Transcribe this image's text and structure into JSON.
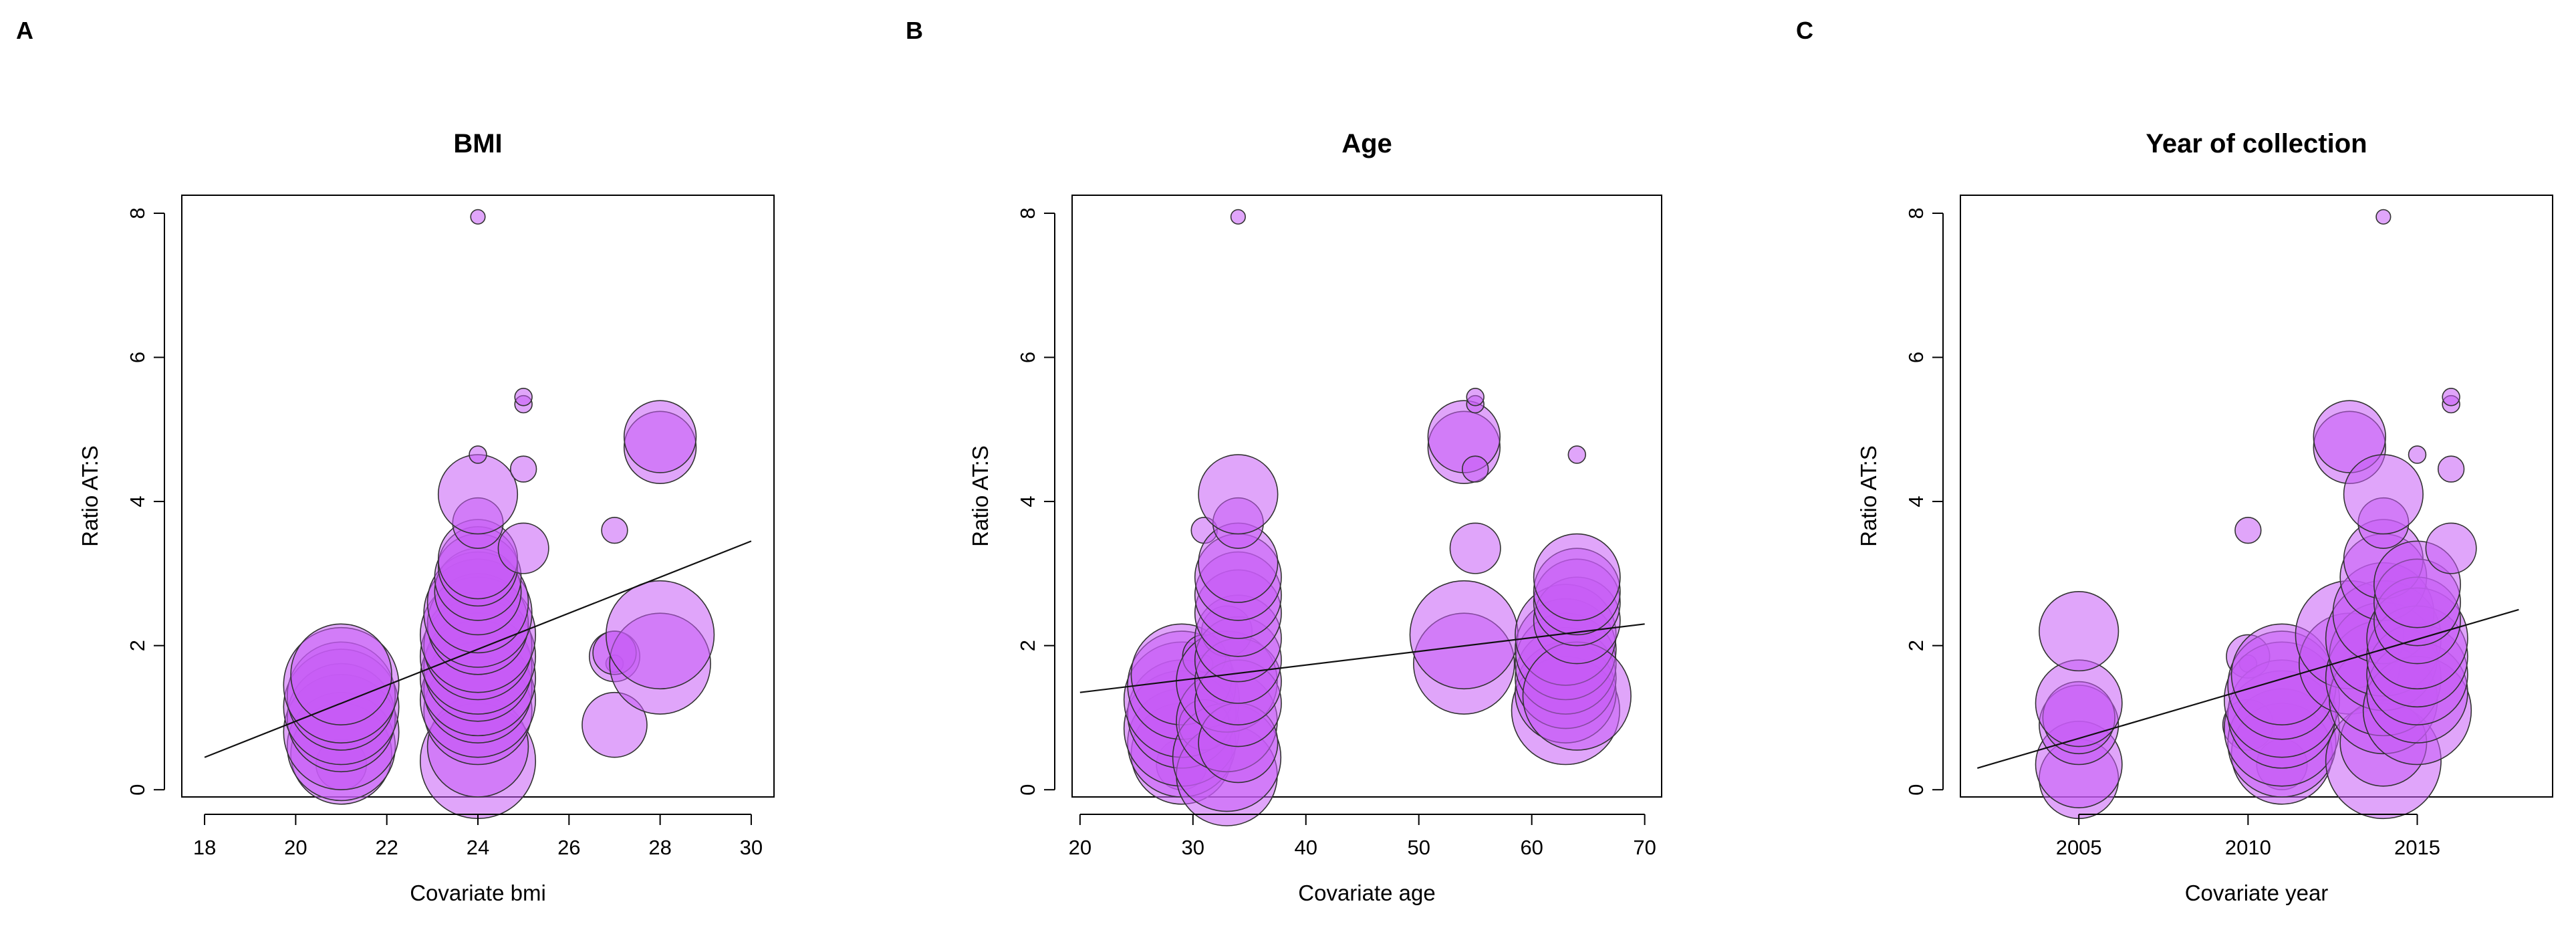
{
  "colors": {
    "bubble_fill": "#c65bf5",
    "bubble_stroke": "#333333",
    "line": "#111111"
  },
  "chart_data": [
    {
      "panel": "A",
      "type": "scatter",
      "title": "BMI",
      "xlabel": "Covariate bmi",
      "ylabel": "Ratio AT:S",
      "xlim": [
        17.5,
        30.5
      ],
      "ylim": [
        -0.1,
        8.25
      ],
      "xticks": [
        18,
        20,
        22,
        24,
        26,
        28,
        30
      ],
      "xtick_labels": [
        "18",
        "20",
        "22",
        "24",
        "26",
        "28",
        "30"
      ],
      "yticks": [
        0,
        2,
        4,
        6,
        8
      ],
      "ytick_labels": [
        "0",
        "2",
        "4",
        "6",
        "8"
      ],
      "regression": {
        "x": [
          18,
          30
        ],
        "y": [
          0.45,
          3.45
        ]
      },
      "points": [
        {
          "x": 21,
          "y": 0.35,
          "r": 0.35
        },
        {
          "x": 21,
          "y": 0.5,
          "r": 0.7
        },
        {
          "x": 21,
          "y": 0.6,
          "r": 0.75
        },
        {
          "x": 21,
          "y": 0.8,
          "r": 0.8
        },
        {
          "x": 21,
          "y": 1.0,
          "r": 0.75
        },
        {
          "x": 21,
          "y": 1.15,
          "r": 0.8
        },
        {
          "x": 21,
          "y": 1.3,
          "r": 0.75
        },
        {
          "x": 21,
          "y": 1.45,
          "r": 0.8
        },
        {
          "x": 21,
          "y": 1.6,
          "r": 0.7
        },
        {
          "x": 24,
          "y": 0.4,
          "r": 0.8
        },
        {
          "x": 24,
          "y": 0.6,
          "r": 0.7
        },
        {
          "x": 24,
          "y": 1.1,
          "r": 0.75
        },
        {
          "x": 24,
          "y": 1.25,
          "r": 0.8
        },
        {
          "x": 24,
          "y": 1.4,
          "r": 0.75
        },
        {
          "x": 24,
          "y": 1.55,
          "r": 0.8
        },
        {
          "x": 24,
          "y": 1.7,
          "r": 0.75
        },
        {
          "x": 24,
          "y": 1.85,
          "r": 0.8
        },
        {
          "x": 24,
          "y": 2.0,
          "r": 0.75
        },
        {
          "x": 24,
          "y": 2.15,
          "r": 0.8
        },
        {
          "x": 24,
          "y": 2.3,
          "r": 0.7
        },
        {
          "x": 24,
          "y": 2.45,
          "r": 0.75
        },
        {
          "x": 24,
          "y": 2.6,
          "r": 0.7
        },
        {
          "x": 24,
          "y": 2.75,
          "r": 0.6
        },
        {
          "x": 24,
          "y": 2.95,
          "r": 0.6
        },
        {
          "x": 24,
          "y": 3.1,
          "r": 0.55
        },
        {
          "x": 24,
          "y": 3.2,
          "r": 0.55
        },
        {
          "x": 24,
          "y": 3.7,
          "r": 0.35
        },
        {
          "x": 24,
          "y": 4.1,
          "r": 0.55
        },
        {
          "x": 24,
          "y": 4.65,
          "r": 0.12
        },
        {
          "x": 24,
          "y": 7.95,
          "r": 0.1
        },
        {
          "x": 25,
          "y": 3.35,
          "r": 0.35
        },
        {
          "x": 25,
          "y": 4.45,
          "r": 0.18
        },
        {
          "x": 25,
          "y": 5.35,
          "r": 0.12
        },
        {
          "x": 25,
          "y": 5.45,
          "r": 0.12
        },
        {
          "x": 27,
          "y": 0.9,
          "r": 0.45
        },
        {
          "x": 27,
          "y": 1.75,
          "r": 0.12
        },
        {
          "x": 27,
          "y": 1.85,
          "r": 0.35
        },
        {
          "x": 27,
          "y": 1.9,
          "r": 0.3
        },
        {
          "x": 27,
          "y": 3.6,
          "r": 0.18
        },
        {
          "x": 28,
          "y": 1.75,
          "r": 0.7
        },
        {
          "x": 28,
          "y": 2.15,
          "r": 0.75
        },
        {
          "x": 28,
          "y": 4.75,
          "r": 0.5
        },
        {
          "x": 28,
          "y": 4.9,
          "r": 0.5
        }
      ]
    },
    {
      "panel": "B",
      "type": "scatter",
      "title": "Age",
      "xlabel": "Covariate age",
      "ylabel": "Ratio AT:S",
      "xlim": [
        19.3,
        71.5
      ],
      "ylim": [
        -0.1,
        8.25
      ],
      "xticks": [
        20,
        30,
        40,
        50,
        60,
        70
      ],
      "xtick_labels": [
        "20",
        "30",
        "40",
        "50",
        "60",
        "70"
      ],
      "yticks": [
        0,
        2,
        4,
        6,
        8
      ],
      "ytick_labels": [
        "0",
        "2",
        "4",
        "6",
        "8"
      ],
      "regression": {
        "x": [
          20,
          70
        ],
        "y": [
          1.35,
          2.3
        ]
      },
      "points": [
        {
          "x": 29,
          "y": 0.35,
          "r": 0.35
        },
        {
          "x": 29,
          "y": 0.5,
          "r": 0.7
        },
        {
          "x": 29,
          "y": 0.65,
          "r": 0.75
        },
        {
          "x": 29,
          "y": 0.85,
          "r": 0.8
        },
        {
          "x": 29,
          "y": 1.05,
          "r": 0.75
        },
        {
          "x": 29,
          "y": 1.25,
          "r": 0.8
        },
        {
          "x": 29,
          "y": 1.45,
          "r": 0.75
        },
        {
          "x": 29,
          "y": 1.6,
          "r": 0.7
        },
        {
          "x": 31,
          "y": 0.9,
          "r": 0.35
        },
        {
          "x": 31,
          "y": 1.75,
          "r": 0.12
        },
        {
          "x": 31,
          "y": 1.85,
          "r": 0.3
        },
        {
          "x": 31,
          "y": 3.6,
          "r": 0.18
        },
        {
          "x": 33,
          "y": 0.2,
          "r": 0.7
        },
        {
          "x": 33,
          "y": 0.45,
          "r": 0.75
        },
        {
          "x": 33,
          "y": 0.95,
          "r": 0.7
        },
        {
          "x": 33,
          "y": 1.5,
          "r": 0.7
        },
        {
          "x": 33,
          "y": 2.2,
          "r": 0.35
        },
        {
          "x": 34,
          "y": 0.65,
          "r": 0.55
        },
        {
          "x": 34,
          "y": 1.2,
          "r": 0.6
        },
        {
          "x": 34,
          "y": 1.5,
          "r": 0.6
        },
        {
          "x": 34,
          "y": 1.8,
          "r": 0.6
        },
        {
          "x": 34,
          "y": 2.1,
          "r": 0.6
        },
        {
          "x": 34,
          "y": 2.45,
          "r": 0.6
        },
        {
          "x": 34,
          "y": 2.7,
          "r": 0.6
        },
        {
          "x": 34,
          "y": 2.95,
          "r": 0.6
        },
        {
          "x": 34,
          "y": 3.15,
          "r": 0.55
        },
        {
          "x": 34,
          "y": 3.7,
          "r": 0.35
        },
        {
          "x": 34,
          "y": 4.1,
          "r": 0.55
        },
        {
          "x": 34,
          "y": 7.95,
          "r": 0.1
        },
        {
          "x": 54,
          "y": 1.75,
          "r": 0.7
        },
        {
          "x": 54,
          "y": 2.15,
          "r": 0.75
        },
        {
          "x": 54,
          "y": 4.75,
          "r": 0.5
        },
        {
          "x": 54,
          "y": 4.9,
          "r": 0.5
        },
        {
          "x": 55,
          "y": 3.35,
          "r": 0.35
        },
        {
          "x": 55,
          "y": 4.45,
          "r": 0.18
        },
        {
          "x": 55,
          "y": 5.35,
          "r": 0.12
        },
        {
          "x": 55,
          "y": 5.45,
          "r": 0.12
        },
        {
          "x": 63,
          "y": 1.1,
          "r": 0.75
        },
        {
          "x": 63,
          "y": 1.35,
          "r": 0.7
        },
        {
          "x": 63,
          "y": 1.55,
          "r": 0.7
        },
        {
          "x": 63,
          "y": 1.75,
          "r": 0.7
        },
        {
          "x": 63,
          "y": 1.95,
          "r": 0.7
        },
        {
          "x": 63,
          "y": 2.15,
          "r": 0.7
        },
        {
          "x": 64,
          "y": 1.3,
          "r": 0.75
        },
        {
          "x": 64,
          "y": 2.35,
          "r": 0.6
        },
        {
          "x": 64,
          "y": 2.6,
          "r": 0.6
        },
        {
          "x": 64,
          "y": 2.75,
          "r": 0.6
        },
        {
          "x": 64,
          "y": 2.95,
          "r": 0.6
        },
        {
          "x": 64,
          "y": 4.65,
          "r": 0.12
        }
      ]
    },
    {
      "panel": "C",
      "type": "scatter",
      "title": "Year of collection",
      "xlabel": "Covariate year",
      "ylabel": "Ratio AT:S",
      "xlim": [
        2001.5,
        2019.0
      ],
      "ylim": [
        -0.1,
        8.25
      ],
      "xticks": [
        2005,
        2010,
        2015
      ],
      "xtick_labels": [
        "2005",
        "2010",
        "2015"
      ],
      "yticks": [
        0,
        2,
        4,
        6,
        8
      ],
      "ytick_labels": [
        "0",
        "2",
        "4",
        "6",
        "8"
      ],
      "regression": {
        "x": [
          2002,
          2018
        ],
        "y": [
          0.3,
          2.5
        ]
      },
      "points": [
        {
          "x": 2005,
          "y": 0.15,
          "r": 0.55
        },
        {
          "x": 2005,
          "y": 0.35,
          "r": 0.6
        },
        {
          "x": 2005,
          "y": 0.9,
          "r": 0.55
        },
        {
          "x": 2005,
          "y": 1.0,
          "r": 0.5
        },
        {
          "x": 2005,
          "y": 1.2,
          "r": 0.6
        },
        {
          "x": 2005,
          "y": 2.2,
          "r": 0.55
        },
        {
          "x": 2010,
          "y": 0.9,
          "r": 0.35
        },
        {
          "x": 2010,
          "y": 1.75,
          "r": 0.12
        },
        {
          "x": 2010,
          "y": 1.85,
          "r": 0.3
        },
        {
          "x": 2010,
          "y": 3.6,
          "r": 0.18
        },
        {
          "x": 2011,
          "y": 0.35,
          "r": 0.35
        },
        {
          "x": 2011,
          "y": 0.5,
          "r": 0.7
        },
        {
          "x": 2011,
          "y": 0.65,
          "r": 0.75
        },
        {
          "x": 2011,
          "y": 0.85,
          "r": 0.8
        },
        {
          "x": 2011,
          "y": 1.05,
          "r": 0.75
        },
        {
          "x": 2011,
          "y": 1.25,
          "r": 0.8
        },
        {
          "x": 2011,
          "y": 1.45,
          "r": 0.75
        },
        {
          "x": 2011,
          "y": 1.6,
          "r": 0.7
        },
        {
          "x": 2013,
          "y": 1.75,
          "r": 0.7
        },
        {
          "x": 2013,
          "y": 2.15,
          "r": 0.75
        },
        {
          "x": 2013,
          "y": 4.75,
          "r": 0.5
        },
        {
          "x": 2013,
          "y": 4.9,
          "r": 0.5
        },
        {
          "x": 2014,
          "y": 0.4,
          "r": 0.8
        },
        {
          "x": 2014,
          "y": 0.65,
          "r": 0.6
        },
        {
          "x": 2014,
          "y": 1.25,
          "r": 0.75
        },
        {
          "x": 2014,
          "y": 1.55,
          "r": 0.8
        },
        {
          "x": 2014,
          "y": 1.85,
          "r": 0.75
        },
        {
          "x": 2014,
          "y": 2.1,
          "r": 0.8
        },
        {
          "x": 2014,
          "y": 2.45,
          "r": 0.7
        },
        {
          "x": 2014,
          "y": 2.95,
          "r": 0.6
        },
        {
          "x": 2014,
          "y": 3.2,
          "r": 0.55
        },
        {
          "x": 2014,
          "y": 3.7,
          "r": 0.35
        },
        {
          "x": 2014,
          "y": 4.1,
          "r": 0.55
        },
        {
          "x": 2014,
          "y": 7.95,
          "r": 0.1
        },
        {
          "x": 2015,
          "y": 1.1,
          "r": 0.75
        },
        {
          "x": 2015,
          "y": 1.35,
          "r": 0.7
        },
        {
          "x": 2015,
          "y": 1.6,
          "r": 0.7
        },
        {
          "x": 2015,
          "y": 1.85,
          "r": 0.7
        },
        {
          "x": 2015,
          "y": 2.1,
          "r": 0.7
        },
        {
          "x": 2015,
          "y": 2.35,
          "r": 0.6
        },
        {
          "x": 2015,
          "y": 2.6,
          "r": 0.6
        },
        {
          "x": 2015,
          "y": 2.85,
          "r": 0.6
        },
        {
          "x": 2015,
          "y": 4.65,
          "r": 0.12
        },
        {
          "x": 2016,
          "y": 3.35,
          "r": 0.35
        },
        {
          "x": 2016,
          "y": 4.45,
          "r": 0.18
        },
        {
          "x": 2016,
          "y": 5.35,
          "r": 0.12
        },
        {
          "x": 2016,
          "y": 5.45,
          "r": 0.12
        }
      ]
    }
  ]
}
